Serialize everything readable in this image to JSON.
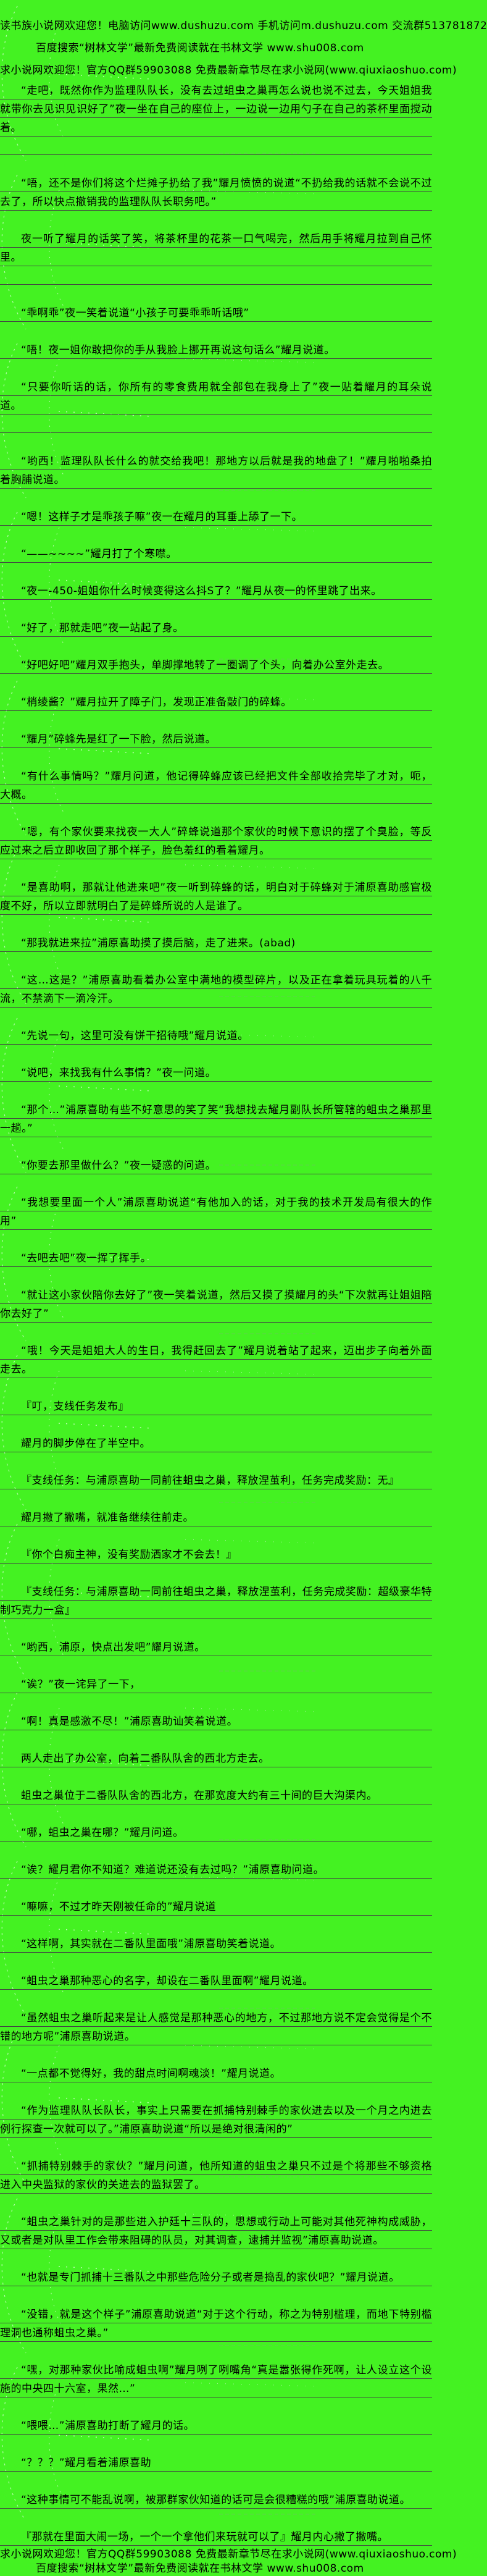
{
  "colors": {
    "background": "#44f222",
    "rule": "#444444",
    "text": "#000000"
  },
  "header_lines": [
    "读书族小说网欢迎您！电脑访问www.dushuzu.com 手机访问m.dushuzu.com 交流群513781872",
    "百度搜索“树林文学”最新免费阅读就在书林文学 www.shu008.com",
    "求小说网欢迎您！官方QQ群59903088 免费最新章节尽在求小说网(www.qiuxiaoshuo.com)"
  ],
  "paragraphs": [
    {
      "text": "“走吧，既然你作为监理队队长，没有去过蛆虫之巢再怎么说也说不过去，今天姐姐我就带你去见识见识好了”夜一坐在自己的座位上，一边说一边用勺子在自己的茶杯里面搅动着。",
      "tail": true
    },
    {
      "text": "“唔，还不是你们将这个烂摊子扔给了我”耀月愤愤的说道“不扔给我的话就不会说不过去了，所以快点撤销我的监理队队长职务吧。”"
    },
    {
      "text": "夜一听了耀月的话笑了笑，将茶杯里的花茶一口气喝完，然后用手将耀月拉到自己怀里。",
      "tail": true
    },
    {
      "text": "“乖啊乖”夜一笑着说道“小孩子可要乖乖听话哦”"
    },
    {
      "text": "“唔！夜一姐你敢把你的手从我脸上挪开再说这句话么”耀月说道。"
    },
    {
      "text": "“只要你听话的话，你所有的零食费用就全部包在我身上了”夜一贴着耀月的耳朵说道。",
      "tail": true
    },
    {
      "text": "“哟西！监理队队长什么的就交给我吧！那地方以后就是我的地盘了！”耀月啪啪桑拍着胸脯说道。"
    },
    {
      "text": "“嗯！这样子才是乖孩子嘛”夜一在耀月的耳垂上舔了一下。"
    },
    {
      "text": "“——~~~~”耀月打了个寒噤。"
    },
    {
      "text": "“夜一-450-姐姐你什么时候变得这么抖S了？”耀月从夜一的怀里跳了出来。"
    },
    {
      "text": "“好了，那就走吧”夜一站起了身。"
    },
    {
      "text": "“好吧好吧”耀月双手抱头，单脚撑地转了一圈调了个头，向着办公室外走去。"
    },
    {
      "text": "“梢绫酱？”耀月拉开了障子门，发现正准备敲门的碎蜂。"
    },
    {
      "text": "“耀月”碎蜂先是红了一下脸，然后说道。"
    },
    {
      "text": "“有什么事情吗？”耀月问道，他记得碎蜂应该已经把文件全部收拾完毕了才对，呃，大概。"
    },
    {
      "text": "“嗯，有个家伙要来找夜一大人”碎蜂说道那个家伙的时候下意识的摆了个臭脸，等反应过来之后立即收回了那个样子，脸色羞红的看着耀月。"
    },
    {
      "text": "“是喜助啊，那就让他进来吧”夜一听到碎蜂的话，明白对于碎蜂对于浦原喜助感官极度不好，所以立即就明白了是碎蜂所说的人是谁了。"
    },
    {
      "text": "“那我就进来拉”浦原喜助摸了摸后脑，走了进来。(abad)"
    },
    {
      "text": "“这…这是？”浦原喜助看着办公室中满地的模型碎片，以及正在拿着玩具玩着的八千流，不禁滴下一滴冷汗。"
    },
    {
      "text": "“先说一句，这里可没有饼干招待哦”耀月说道。"
    },
    {
      "text": "“说吧，来找我有什么事情？”夜一问道。"
    },
    {
      "text": "“那个…”浦原喜助有些不好意思的笑了笑“我想找去耀月副队长所管辖的蛆虫之巢那里一趟。”"
    },
    {
      "text": "“你要去那里做什么？”夜一疑惑的问道。"
    },
    {
      "text": "“我想要里面一个人”浦原喜助说道“有他加入的话，对于我的技术开发局有很大的作用”"
    },
    {
      "text": "“去吧去吧”夜一挥了挥手。"
    },
    {
      "text": "“就让这小家伙陪你去好了”夜一笑着说道，然后又摸了摸耀月的头“下次就再让姐姐陪你去好了”"
    },
    {
      "text": "“哦！今天是姐姐大人的生日，我得赶回去了”耀月说着站了起来，迈出步子向着外面走去。"
    },
    {
      "text": "『叮，支线任务发布』"
    },
    {
      "text": "耀月的脚步停在了半空中。"
    },
    {
      "text": "『支线任务：与浦原喜助一同前往蛆虫之巢，释放涅茧利，任务完成奖励：无』"
    },
    {
      "text": "耀月撇了撇嘴，就准备继续往前走。"
    },
    {
      "text": "『你个白痴主神，没有奖励洒家才不会去！』"
    },
    {
      "text": "『支线任务：与浦原喜助一同前往蛆虫之巢，释放涅茧利，任务完成奖励：超级豪华特制巧克力一盒』"
    },
    {
      "text": "“哟西，浦原，快点出发吧”耀月说道。"
    },
    {
      "text": "“诶？”夜一诧异了一下，"
    },
    {
      "text": "“啊！真是感激不尽！”浦原喜助讪笑着说道。"
    },
    {
      "text": "两人走出了办公室，向着二番队队舍的西北方走去。"
    },
    {
      "text": "蛆虫之巢位于二番队队舍的西北方，在那宽度大约有三十间的巨大沟渠内。"
    },
    {
      "text": "“哪，蛆虫之巢在哪？”耀月问道。"
    },
    {
      "text": "“诶？耀月君你不知道？难道说还没有去过吗？”浦原喜助问道。"
    },
    {
      "text": "“嘛嘛，不过才昨天刚被任命的”耀月说道"
    },
    {
      "text": "“这样啊，其实就在二番队里面哦”浦原喜助笑着说道。"
    },
    {
      "text": "“蛆虫之巢那种恶心的名字，却设在二番队里面啊”耀月说道。"
    },
    {
      "text": "“虽然蛆虫之巢听起来是让人感觉是那种恶心的地方，不过那地方说不定会觉得是个不错的地方呢”浦原喜助说道。"
    },
    {
      "text": "“一点都不觉得好，我的甜点时间啊魂淡！”耀月说道。"
    },
    {
      "text": "“作为监理队队长队长，事实上只需要在抓捕特别棘手的家伙进去以及一个月之内进去例行探查一次就可以了。”浦原喜助说道“所以是绝对很清闲的”"
    },
    {
      "text": "“抓捕特别棘手的家伙？”耀月问道，他所知道的蛆虫之巢只不过是个将那些不够资格进入中央监狱的家伙的关进去的监狱罢了。"
    },
    {
      "text": "“蛆虫之巢针对的是那些进入护廷十三队的，思想或行动上可能对其他死神构成威胁，又或者是对队里工作会带来阻碍的队员，对其调查，逮捕并监视”浦原喜助说道。"
    },
    {
      "text": "“也就是专门抓捕十三番队之中那些危险分子或者是捣乱的家伙吧？”耀月说道。"
    },
    {
      "text": "“没错，就是这个样子”浦原喜助说道“对于这个行动，称之为特别槛理，而地下特别槛理洞也通称蛆虫之巢。”"
    },
    {
      "text": "“嘿，对那种家伙比喻成蛆虫啊”耀月咧了咧嘴角“真是嚣张得作死啊，让人设立这个设施的中央四十六室，果然…”"
    },
    {
      "text": "“喂喂…”浦原喜助打断了耀月的话。"
    },
    {
      "text": "“？？？”耀月看着浦原喜助"
    },
    {
      "text": "“这种事情可不能乱说啊，被那群家伙知道的话可是会很糟糕的哦”浦原喜助说道。"
    },
    {
      "text": "『那就在里面大闹一场，一个一个拿他们来玩就可以了』耀月内心撇了撇嘴。"
    }
  ],
  "footer_lines": [
    "求小说网欢迎您！官方QQ群59903088 免费最新章节尽在求小说网(www.qiuxiaoshuo.com)",
    "百度搜索“树林文学”最新免费阅读就在书林文学 www.shu008.com"
  ]
}
